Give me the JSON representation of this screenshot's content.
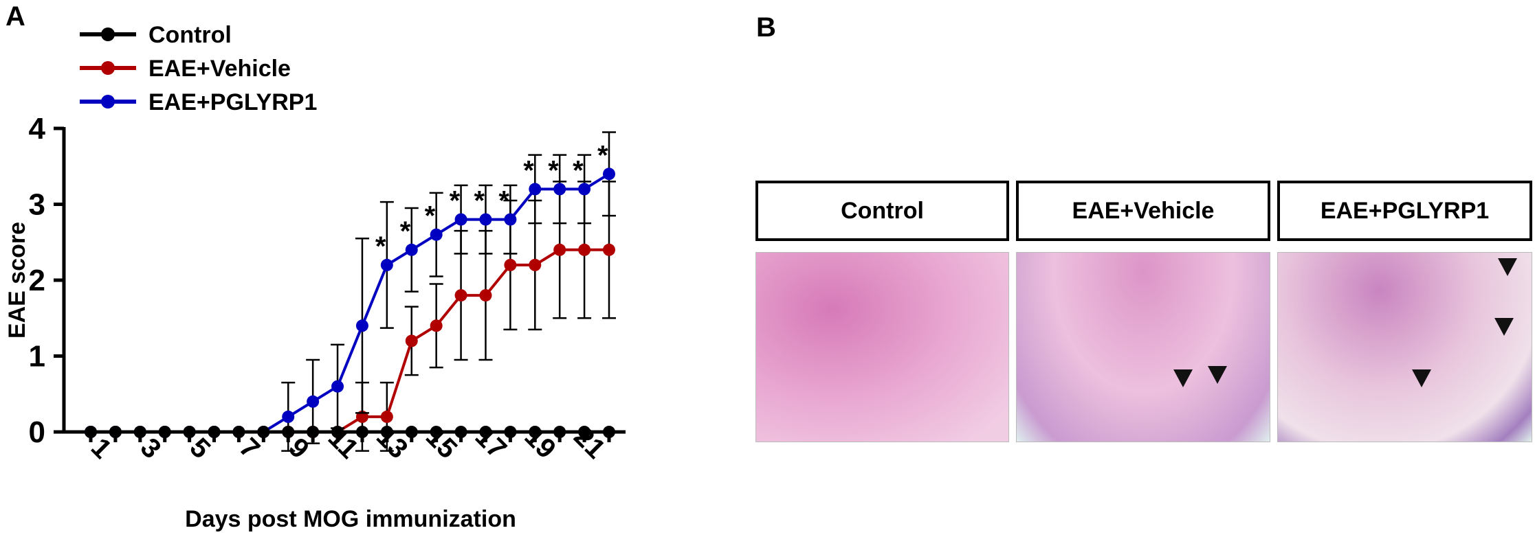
{
  "panels": {
    "a": "A",
    "b": "B"
  },
  "chart_data": {
    "type": "line",
    "xlabel": "Days post MOG immunization",
    "ylabel": "EAE score",
    "ylim": [
      0,
      4
    ],
    "yticks": [
      "0",
      "1",
      "2",
      "3",
      "4"
    ],
    "xticks": [
      "1",
      "3",
      "5",
      "7",
      "9",
      "11",
      "13",
      "15",
      "17",
      "19",
      "21"
    ],
    "x": [
      1,
      2,
      3,
      4,
      5,
      6,
      7,
      8,
      9,
      10,
      11,
      12,
      13,
      14,
      15,
      16,
      17,
      18,
      19,
      20,
      21,
      22
    ],
    "series": [
      {
        "name": "Control",
        "color": "#000000",
        "values": [
          0,
          0,
          0,
          0,
          0,
          0,
          0,
          0,
          0,
          0,
          0,
          0,
          0,
          0,
          0,
          0,
          0,
          0,
          0,
          0,
          0,
          0
        ],
        "err": [
          0,
          0,
          0,
          0,
          0,
          0,
          0,
          0,
          0,
          0,
          0,
          0,
          0,
          0,
          0,
          0,
          0,
          0,
          0,
          0,
          0,
          0
        ]
      },
      {
        "name": "EAE+Vehicle",
        "color": "#b00000",
        "values": [
          0,
          0,
          0,
          0,
          0,
          0,
          0,
          0,
          0,
          0,
          0,
          0.2,
          0.2,
          1.2,
          1.4,
          1.8,
          1.8,
          2.2,
          2.2,
          2.4,
          2.4,
          2.4
        ],
        "err": [
          0,
          0,
          0,
          0,
          0,
          0,
          0,
          0,
          0,
          0,
          0,
          0.45,
          0.45,
          0.45,
          0.55,
          0.85,
          0.85,
          0.85,
          0.85,
          0.9,
          0.9,
          0.9
        ]
      },
      {
        "name": "EAE+PGLYRP1",
        "color": "#0000c0",
        "values": [
          0,
          0,
          0,
          0,
          0,
          0,
          0,
          0,
          0.2,
          0.4,
          0.6,
          1.4,
          2.2,
          2.4,
          2.6,
          2.8,
          2.8,
          2.8,
          3.2,
          3.2,
          3.2,
          3.4
        ],
        "err": [
          0,
          0,
          0,
          0,
          0,
          0,
          0,
          0,
          0.45,
          0.55,
          0.55,
          1.15,
          0.83,
          0.55,
          0.55,
          0.45,
          0.45,
          0.45,
          0.45,
          0.45,
          0.45,
          0.55
        ]
      }
    ],
    "significance_marker": "*",
    "significant_days": [
      13,
      14,
      15,
      16,
      17,
      18,
      19,
      20,
      21,
      22
    ],
    "legend_position": "top-left"
  },
  "histology": {
    "labels": [
      "Control",
      "EAE+Vehicle",
      "EAE+PGLYRP1"
    ]
  }
}
